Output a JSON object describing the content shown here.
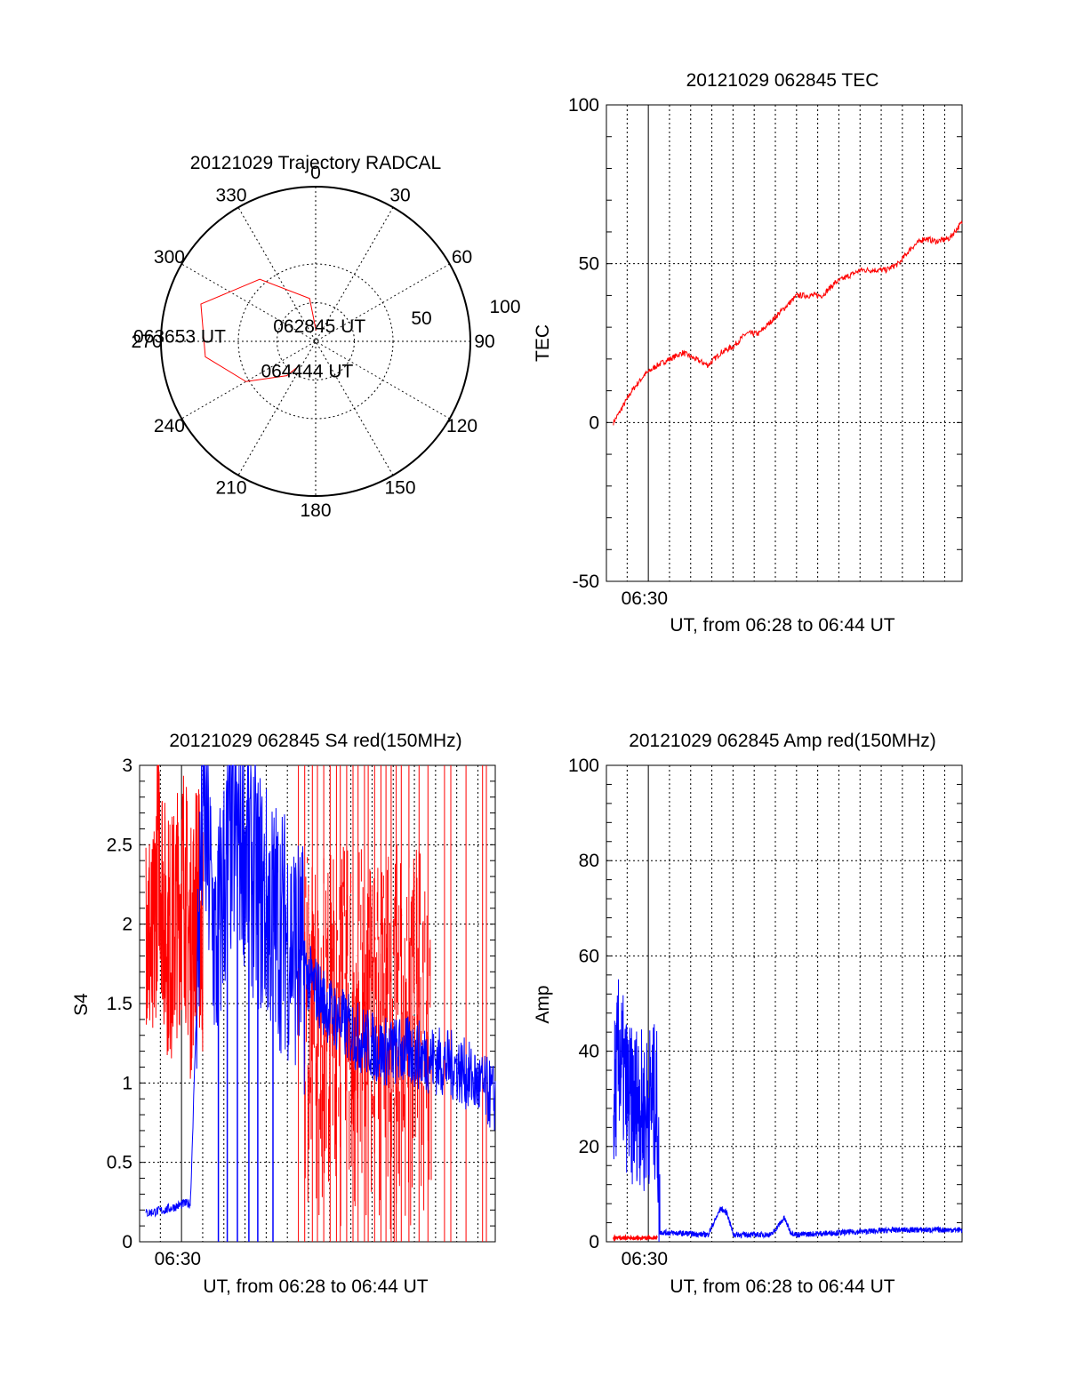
{
  "chart_data": [
    {
      "type": "polar",
      "title": "20121029 Trajectory RADCAL",
      "angle_labels": [
        "0",
        "30",
        "60",
        "90",
        "120",
        "150",
        "180",
        "210",
        "240",
        "270",
        "300",
        "330"
      ],
      "radial_labels": [
        "50",
        "100"
      ],
      "radial_max": 100,
      "series": [
        {
          "color": "#ff0000",
          "points": [
            {
              "azimuth": 2,
              "elevation": 7
            },
            {
              "azimuth": 352,
              "elevation": 28
            },
            {
              "azimuth": 318,
              "elevation": 54
            },
            {
              "azimuth": 288,
              "elevation": 78
            },
            {
              "azimuth": 262,
              "elevation": 72
            },
            {
              "azimuth": 240,
              "elevation": 52
            },
            {
              "azimuth": 220,
              "elevation": 29
            },
            {
              "azimuth": 214,
              "elevation": 19
            }
          ]
        }
      ],
      "annotations": [
        {
          "text": "062845 UT",
          "azimuth": 14,
          "elevation": 10
        },
        {
          "text": "063653 UT",
          "azimuth": 272,
          "elevation": 88
        },
        {
          "text": "064444 UT",
          "azimuth": 196,
          "elevation": 20
        }
      ]
    },
    {
      "type": "line",
      "title": "20121029 062845 TEC",
      "xlabel": "UT, from 06:28 to 06:44 UT",
      "ylabel": "TEC",
      "xlim": [
        6.47,
        6.75
      ],
      "ylim": [
        -50,
        100
      ],
      "y_ticks": [
        "-50",
        "0",
        "50",
        "100"
      ],
      "x_tick_labels": [
        {
          "x": 6.5,
          "label": "06:30"
        }
      ],
      "grid": true,
      "series": [
        {
          "color": "#ff0000",
          "x": [
            6.4755,
            6.48,
            6.49,
            6.5,
            6.51,
            6.52,
            6.53,
            6.54,
            6.55,
            6.56,
            6.57,
            6.58,
            6.59,
            6.6,
            6.61,
            6.62,
            6.63,
            6.64,
            6.65,
            6.66,
            6.67,
            6.68,
            6.69,
            6.7,
            6.71,
            6.72,
            6.73,
            6.74,
            6.75
          ],
          "values": [
            0,
            3,
            10,
            15,
            18,
            20,
            22,
            20,
            18,
            22,
            24,
            28,
            28,
            32,
            36,
            40,
            40,
            40,
            44,
            46,
            48,
            48,
            48,
            50,
            55,
            58,
            57,
            58,
            63
          ]
        }
      ]
    },
    {
      "type": "line",
      "title": "20121029 062845 S4 red(150MHz)",
      "xlabel": "UT, from 06:28 to 06:44 UT",
      "ylabel": "S4",
      "xlim": [
        6.47,
        6.75
      ],
      "ylim": [
        0,
        3
      ],
      "y_ticks": [
        "0",
        "0.5",
        "1",
        "1.5",
        "2",
        "2.5",
        "3"
      ],
      "x_tick_labels": [
        {
          "x": 6.5,
          "label": "06:30"
        }
      ],
      "grid": true,
      "series": [
        {
          "color": "#ff0000",
          "x": [
            6.475,
            6.48,
            6.485,
            6.49,
            6.495,
            6.5,
            6.505,
            6.51,
            6.515,
            6.52
          ],
          "values": [
            2.2,
            1.7,
            2.6,
            2.0,
            1.9,
            2.1,
            2.3,
            1.8,
            2.2,
            1.9
          ]
        },
        {
          "color": "#0000ff",
          "x": [
            6.475,
            6.49,
            6.505,
            6.51,
            6.52,
            6.53,
            6.54,
            6.55,
            6.56,
            6.57,
            6.58,
            6.59,
            6.6,
            6.62,
            6.64,
            6.66,
            6.68,
            6.7,
            6.72,
            6.75
          ],
          "values": [
            0.18,
            0.2,
            0.24,
            0.24,
            2.8,
            1.8,
            2.5,
            2.6,
            2.3,
            2.1,
            2.0,
            1.9,
            1.7,
            1.45,
            1.3,
            1.2,
            1.2,
            1.15,
            1.1,
            0.9
          ]
        }
      ]
    },
    {
      "type": "line",
      "title": "20121029 062845 Amp red(150MHz)",
      "xlabel": "UT, from 06:28 to 06:44 UT",
      "ylabel": "Amp",
      "xlim": [
        6.47,
        6.75
      ],
      "ylim": [
        0,
        100
      ],
      "y_ticks": [
        "0",
        "20",
        "40",
        "60",
        "80",
        "100"
      ],
      "x_tick_labels": [
        {
          "x": 6.5,
          "label": "06:30"
        }
      ],
      "grid": true,
      "series": [
        {
          "color": "#ff0000",
          "x": [
            6.4755,
            6.5,
            6.51
          ],
          "values": [
            0.8,
            0.8,
            0.8
          ]
        },
        {
          "color": "#0000ff",
          "x": [
            6.4755,
            6.48,
            6.485,
            6.49,
            6.495,
            6.5,
            6.505,
            6.51,
            6.512,
            6.55,
            6.56,
            6.565,
            6.57,
            6.6,
            6.61,
            6.615,
            6.62,
            6.7,
            6.75
          ],
          "values": [
            28,
            40,
            32,
            28,
            30,
            26,
            30,
            28,
            2,
            1.5,
            7,
            6,
            1.5,
            1.5,
            5,
            2,
            1.5,
            2.5,
            2.5
          ]
        }
      ]
    }
  ]
}
